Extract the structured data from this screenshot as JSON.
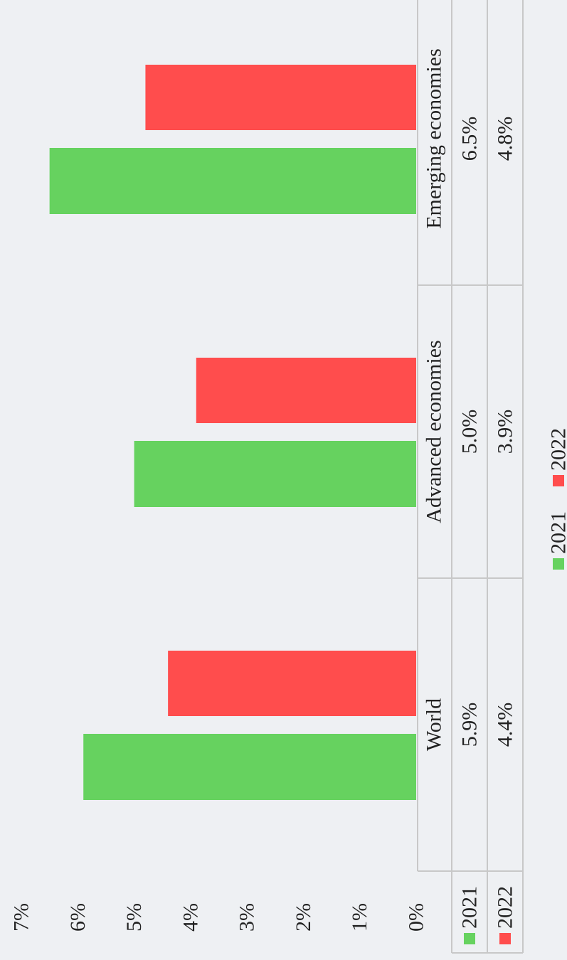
{
  "chart_data": {
    "type": "bar",
    "categories": [
      "World",
      "Advanced economies",
      "Emerging economies"
    ],
    "series": [
      {
        "name": "2021",
        "color": "#66d25f",
        "values": [
          5.9,
          5.0,
          6.5
        ],
        "value_labels": [
          "5.9%",
          "5.0%",
          "6.5%"
        ]
      },
      {
        "name": "2022",
        "color": "#ff4d4d",
        "values": [
          4.4,
          3.9,
          4.8
        ],
        "value_labels": [
          "4.4%",
          "3.9%",
          "4.8%"
        ]
      }
    ],
    "ylim": [
      0,
      7
    ],
    "yticks": [
      {
        "value": 0,
        "label": "0%"
      },
      {
        "value": 1,
        "label": "1%"
      },
      {
        "value": 2,
        "label": "2%"
      },
      {
        "value": 3,
        "label": "3%"
      },
      {
        "value": 4,
        "label": "4%"
      },
      {
        "value": 5,
        "label": "5%"
      },
      {
        "value": 6,
        "label": "6%"
      },
      {
        "value": 7,
        "label": "7%"
      }
    ],
    "legend": "bottom"
  }
}
